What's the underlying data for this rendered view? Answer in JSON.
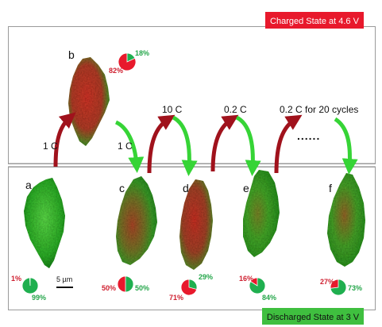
{
  "charged_banner": {
    "text": "Charged State at 4.6 V",
    "color": "#e8192c"
  },
  "discharged_banner": {
    "text": "Discharged State at 3 V",
    "color": "#3fbf3f"
  },
  "colors": {
    "red": "#e02020",
    "green": "#26b64a",
    "pie_red": "#e8192c",
    "pie_green": "#1faf4f",
    "pct_red": "#cf2030",
    "pct_green": "#24a64a"
  },
  "scale_bar": {
    "text": "5 µm"
  },
  "ellipsis": "......",
  "panels": [
    {
      "letter": "a",
      "red_pct": "1%",
      "green_pct": "99%",
      "red_fraction": 0.01,
      "green_fraction": 0.99
    },
    {
      "letter": "b",
      "red_pct": "82%",
      "green_pct": "18%",
      "red_fraction": 0.82,
      "green_fraction": 0.18
    },
    {
      "letter": "c",
      "red_pct": "50%",
      "green_pct": "50%",
      "red_fraction": 0.5,
      "green_fraction": 0.5
    },
    {
      "letter": "d",
      "red_pct": "71%",
      "green_pct": "29%",
      "red_fraction": 0.71,
      "green_fraction": 0.29
    },
    {
      "letter": "e",
      "red_pct": "16%",
      "green_pct": "84%",
      "red_fraction": 0.16,
      "green_fraction": 0.84
    },
    {
      "letter": "f",
      "red_pct": "27%",
      "green_pct": "73%",
      "red_fraction": 0.27,
      "green_fraction": 0.73
    }
  ],
  "arrows": [
    {
      "label": "1 C",
      "direction": "charge"
    },
    {
      "label": "1 C",
      "direction": "discharge"
    },
    {
      "label": "10 C",
      "direction": "charge"
    },
    {
      "label": "0.2 C",
      "direction": "charge"
    },
    {
      "label": "0.2 C for 20 cycles",
      "direction": "charge"
    }
  ]
}
